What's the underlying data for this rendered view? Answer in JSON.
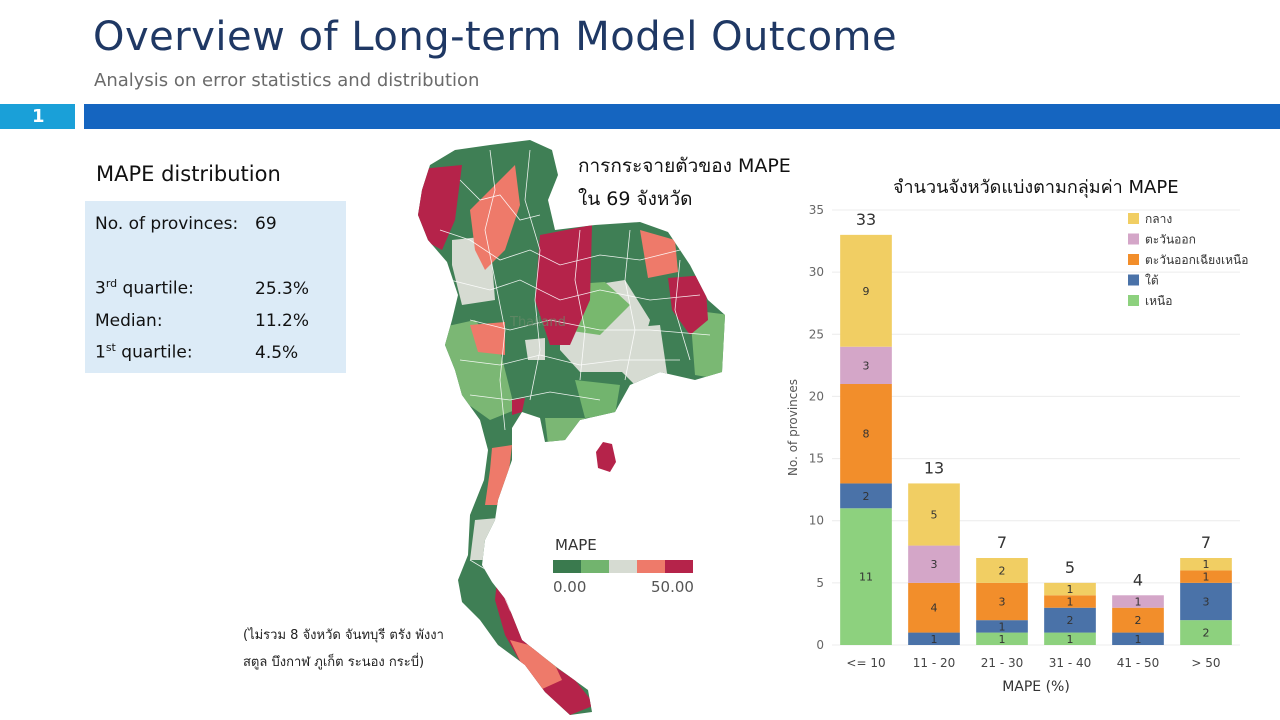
{
  "header": {
    "title": "Overview of Long-term Model Outcome",
    "subtitle": "Analysis on error statistics and distribution",
    "slide_number": "1"
  },
  "stats": {
    "heading": "MAPE distribution",
    "provinces_label": "No. of provinces:",
    "provinces_value": "69",
    "q3_label_main": "3",
    "q3_label_sup": "rd",
    "q3_label_rest": " quartile:",
    "q3_value": "25.3%",
    "median_label": "Median:",
    "median_value": "11.2%",
    "q1_label_main": "1",
    "q1_label_sup": "st",
    "q1_label_rest": " quartile:",
    "q1_value": "4.5%"
  },
  "map": {
    "title_line1": "การกระจายตัวของ MAPE",
    "title_line2": "ใน 69 จังหวัด",
    "watermark": "Thailand",
    "legend_title": "MAPE",
    "legend_min": "0.00",
    "legend_max": "50.00",
    "legend_colors": [
      "#3a7a4e",
      "#72b46e",
      "#d6dbd2",
      "#ee7a6a",
      "#b5234a"
    ],
    "footnote_line1": "(ไม่รวม 8 จังหวัด จันทบุรี ตรัง พังงา",
    "footnote_line2": "สตูล บึงกาฬ ภูเก็ต ระนอง กระบี่)"
  },
  "chart_data": {
    "type": "bar",
    "stacked": true,
    "title": "จำนวนจังหวัดแบ่งตามกลุ่มค่า  MAPE",
    "xlabel": "MAPE (%)",
    "ylabel": "No. of provinces",
    "ylim": [
      0,
      35
    ],
    "yticks": [
      0,
      5,
      10,
      15,
      20,
      25,
      30,
      35
    ],
    "categories": [
      "<= 10",
      "11 - 20",
      "21 - 30",
      "31 - 40",
      "41 - 50",
      "> 50"
    ],
    "totals": [
      33,
      13,
      7,
      5,
      4,
      7
    ],
    "legend_position": "top-right",
    "series": [
      {
        "name": "เหนือ",
        "color": "#8dd17e",
        "values": [
          11,
          0,
          1,
          1,
          0,
          2
        ]
      },
      {
        "name": "ใต้",
        "color": "#4a72a8",
        "values": [
          2,
          1,
          1,
          2,
          1,
          3
        ]
      },
      {
        "name": "ตะวันออกเฉียงเหนือ",
        "color": "#f28e2b",
        "values": [
          8,
          4,
          3,
          1,
          2,
          1
        ]
      },
      {
        "name": "ตะวันออก",
        "color": "#d4a6c8",
        "values": [
          3,
          3,
          0,
          0,
          1,
          0
        ]
      },
      {
        "name": "กลาง",
        "color": "#f1ce63",
        "values": [
          9,
          5,
          2,
          1,
          0,
          1
        ]
      }
    ]
  }
}
